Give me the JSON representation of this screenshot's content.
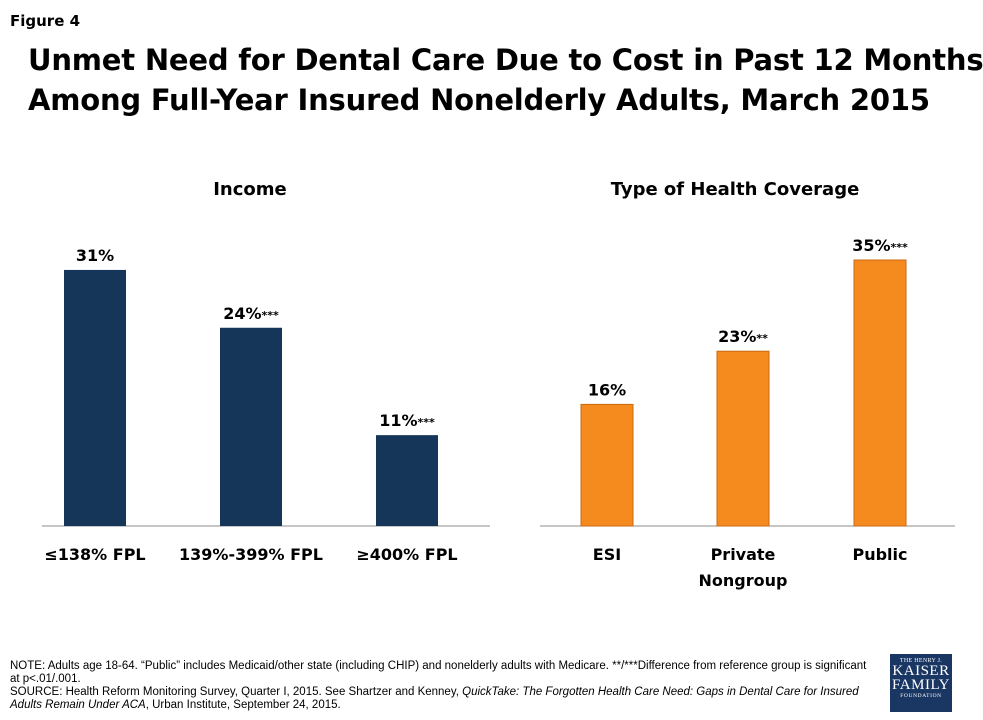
{
  "figure_label": "Figure 4",
  "title_lines": [
    "Unmet Need for Dental Care Due to Cost in Past 12 Months",
    "Among Full-Year Insured Nonelderly Adults, March 2015"
  ],
  "colors": {
    "income_bar": "#163659",
    "coverage_bar": "#f58a1f",
    "coverage_bar_border": "#c96a12"
  },
  "chart_data": [
    {
      "type": "bar",
      "title": "Income",
      "categories": [
        "≤138% FPL",
        "139%-399% FPL",
        "≥400% FPL"
      ],
      "values": [
        31,
        24,
        11
      ],
      "value_labels": [
        "31%",
        "24%",
        "11%"
      ],
      "significance": [
        "",
        "***",
        "***"
      ],
      "ylim": [
        0,
        40
      ],
      "xlabel": "",
      "ylabel": ""
    },
    {
      "type": "bar",
      "title": "Type of Health Coverage",
      "categories": [
        [
          "ESI"
        ],
        [
          "Private",
          "Nongroup"
        ],
        [
          "Public"
        ]
      ],
      "values": [
        16,
        23,
        35
      ],
      "value_labels": [
        "16%",
        "23%",
        "35%"
      ],
      "significance": [
        "",
        "**",
        "***"
      ],
      "ylim": [
        0,
        40
      ],
      "xlabel": "",
      "ylabel": ""
    }
  ],
  "notes": {
    "note_text": "NOTE: Adults age 18-64.  “Public” includes Medicaid/other state (including CHIP) and nonelderly adults with Medicare. **/***Difference from reference group is significant at p<.01/.001.",
    "source_prefix": "SOURCE: Health Reform Monitoring Survey, Quarter I, 2015. See Shartzer and Kenney, ",
    "source_italic": "QuickTake: The Forgotten Health Care Need: Gaps in Dental Care for Insured Adults Remain Under ACA",
    "source_suffix": ", Urban Institute, September 24, 2015."
  },
  "logo": {
    "line1": "THE HENRY J.",
    "line2": "KAISER",
    "line3": "FAMILY",
    "line4": "FOUNDATION"
  }
}
